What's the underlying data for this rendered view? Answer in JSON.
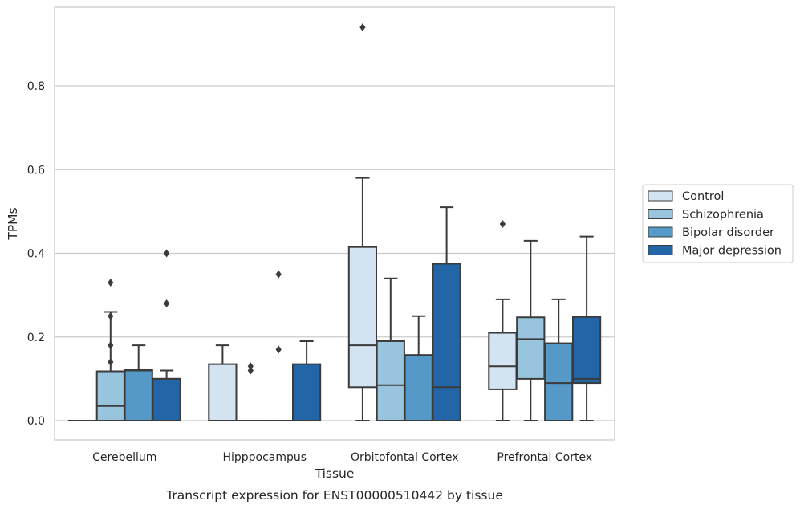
{
  "chart_data": {
    "type": "box",
    "caption": "Transcript expression for ENST00000510442 by tissue",
    "xlabel": "Tissue",
    "ylabel": "TPMs",
    "ylim": [
      -0.045,
      0.985
    ],
    "yticks": [
      0.0,
      0.2,
      0.4,
      0.6,
      0.8
    ],
    "ytick_labels": [
      "0.0",
      "0.2",
      "0.4",
      "0.6",
      "0.8"
    ],
    "grid": "horizontal",
    "legend_position": "right",
    "categories": [
      "Cerebellum",
      "Hipppocampus",
      "Orbitofontal Cortex",
      "Prefrontal Cortex"
    ],
    "series": [
      {
        "name": "Control",
        "color": "#d3e3f2",
        "boxes": [
          {
            "min": 0,
            "q1": 0,
            "median": 0,
            "q3": 0,
            "max": 0,
            "outliers": []
          },
          {
            "min": 0,
            "q1": 0,
            "median": 0,
            "q3": 0.135,
            "max": 0.18,
            "outliers": []
          },
          {
            "min": 0,
            "q1": 0.08,
            "median": 0.18,
            "q3": 0.415,
            "max": 0.58,
            "outliers": [
              0.94
            ]
          },
          {
            "min": 0,
            "q1": 0.075,
            "median": 0.13,
            "q3": 0.21,
            "max": 0.29,
            "outliers": [
              0.47
            ]
          }
        ]
      },
      {
        "name": "Schizophrenia",
        "color": "#98c4de",
        "boxes": [
          {
            "min": 0,
            "q1": 0,
            "median": 0.035,
            "q3": 0.118,
            "max": 0.26,
            "outliers": [
              0.25,
              0.18,
              0.14,
              0.33
            ]
          },
          {
            "min": 0,
            "q1": 0,
            "median": 0,
            "q3": 0,
            "max": 0,
            "outliers": [
              0.13,
              0.12
            ]
          },
          {
            "min": 0,
            "q1": 0,
            "median": 0.085,
            "q3": 0.19,
            "max": 0.34,
            "outliers": []
          },
          {
            "min": 0,
            "q1": 0.1,
            "median": 0.195,
            "q3": 0.247,
            "max": 0.43,
            "outliers": []
          }
        ]
      },
      {
        "name": "Bipolar disorder",
        "color": "#5499c7",
        "boxes": [
          {
            "min": 0,
            "q1": 0,
            "median": 0.12,
            "q3": 0.122,
            "max": 0.18,
            "outliers": []
          },
          {
            "min": 0,
            "q1": 0,
            "median": 0,
            "q3": 0,
            "max": 0,
            "outliers": [
              0.35,
              0.17
            ]
          },
          {
            "min": 0,
            "q1": 0,
            "median": 0,
            "q3": 0.157,
            "max": 0.25,
            "outliers": []
          },
          {
            "min": 0,
            "q1": 0,
            "median": 0.09,
            "q3": 0.185,
            "max": 0.29,
            "outliers": []
          }
        ]
      },
      {
        "name": "Major depression",
        "color": "#2266a8",
        "boxes": [
          {
            "min": 0,
            "q1": 0,
            "median": 0.1,
            "q3": 0.1,
            "max": 0.12,
            "outliers": [
              0.4,
              0.28
            ]
          },
          {
            "min": 0,
            "q1": 0,
            "median": 0,
            "q3": 0.135,
            "max": 0.19,
            "outliers": []
          },
          {
            "min": 0,
            "q1": 0,
            "median": 0.08,
            "q3": 0.375,
            "max": 0.51,
            "outliers": []
          },
          {
            "min": 0,
            "q1": 0.09,
            "median": 0.1,
            "q3": 0.248,
            "max": 0.44,
            "outliers": []
          }
        ]
      }
    ],
    "colors": {
      "grid": "#cccccc",
      "frame": "#cccccc",
      "line": "#3b3b3b",
      "text": "#262626"
    }
  }
}
